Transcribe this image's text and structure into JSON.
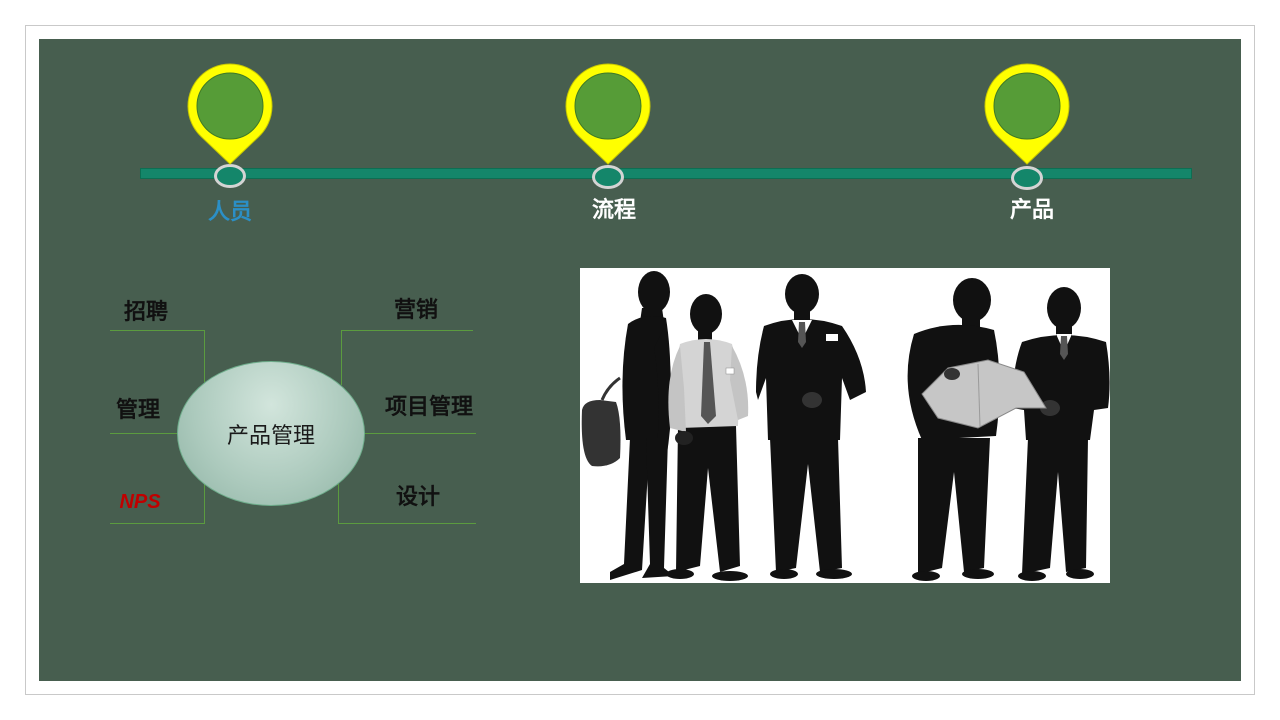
{
  "slide": {
    "background": "#475e4f"
  },
  "timeline": {
    "bar_color": "#14866a",
    "pin_color": "#ffff00",
    "pin_inner_color": "#569c37",
    "ring_color": "#d4d4d4",
    "items": [
      {
        "label": "人员",
        "color": "#2b8fc6",
        "icon": "location-pin-icon"
      },
      {
        "label": "流程",
        "color": "#ffffff",
        "icon": "location-pin-icon"
      },
      {
        "label": "产品",
        "color": "#ffffff",
        "icon": "location-pin-icon"
      }
    ]
  },
  "mind_map": {
    "center": "产品管理",
    "line_color": "#5b9b3f",
    "branches": {
      "top_left": {
        "label": "招聘"
      },
      "middle_left": {
        "label": "管理"
      },
      "bottom_left": {
        "label": "NPS",
        "color": "#c00000"
      },
      "top_right": {
        "label": "营销"
      },
      "middle_right": {
        "label": "项目管理"
      },
      "bottom_right": {
        "label": "设计"
      }
    }
  }
}
